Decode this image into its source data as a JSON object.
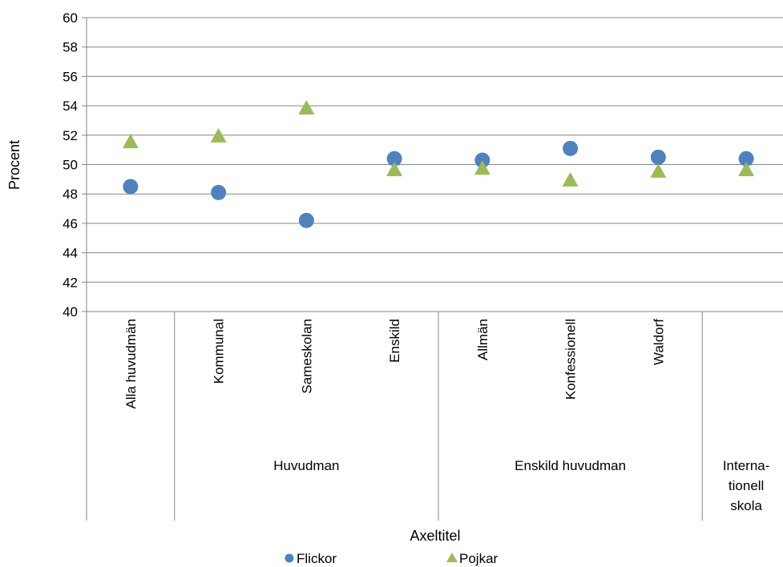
{
  "chart_data": {
    "type": "scatter",
    "ylabel": "Procent",
    "xlabel": "Axeltitel",
    "ylim": [
      40,
      60
    ],
    "ytick_step": 2,
    "grid": "horizontal",
    "legend_position": "bottom",
    "categories": [
      "Alla huvudmän",
      "Kommunal",
      "Sameskolan",
      "Enskild",
      "Allmän",
      "Konfessionell",
      "Waldorf",
      ""
    ],
    "groups": [
      {
        "label": "",
        "span": [
          0,
          0
        ]
      },
      {
        "label": "Huvudman",
        "span": [
          1,
          3
        ]
      },
      {
        "label": "Enskild huvudman",
        "span": [
          4,
          6
        ]
      },
      {
        "label_lines": [
          "Interna-",
          "tionell",
          "skola"
        ],
        "span": [
          7,
          7
        ]
      }
    ],
    "series": [
      {
        "name": "Flickor",
        "marker": "circle",
        "color": "#4f81bd",
        "values": [
          48.5,
          48.1,
          46.2,
          50.4,
          50.3,
          51.1,
          50.5,
          50.4
        ]
      },
      {
        "name": "Pojkar",
        "marker": "triangle",
        "color": "#9bbb59",
        "values": [
          51.5,
          51.9,
          53.8,
          49.6,
          49.7,
          48.9,
          49.5,
          49.6
        ]
      }
    ]
  }
}
